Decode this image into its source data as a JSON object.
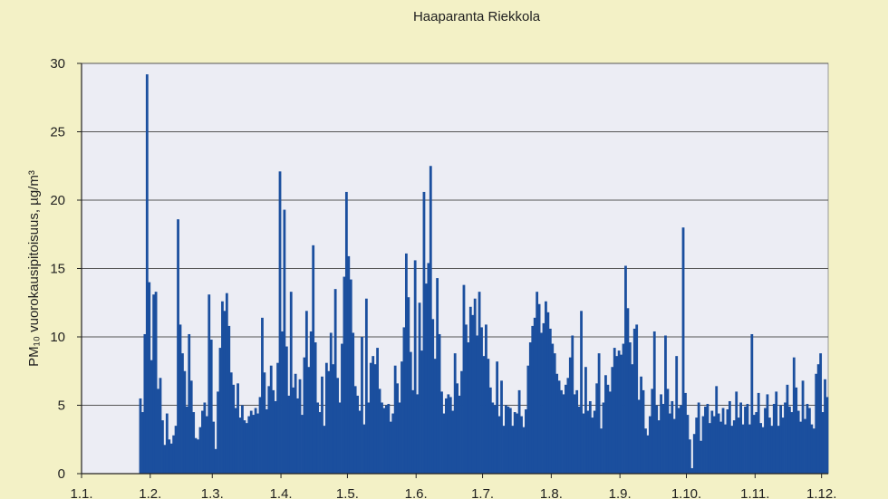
{
  "chart_data": {
    "type": "bar",
    "title": "Haaparanta Riekkola",
    "ylabel": "PM₁₀ vuorokausipitoisuus, µg/m³",
    "xlabel": "",
    "ylim": [
      0,
      30
    ],
    "yticks": [
      "0",
      "5",
      "10",
      "15",
      "20",
      "25",
      "30"
    ],
    "xticks": [
      "1.1.",
      "1.2.",
      "1.3.",
      "1.4.",
      "1.5.",
      "1.6.",
      "1.7.",
      "1.8.",
      "1.9.",
      "1.10.",
      "1.11.",
      "1.12."
    ],
    "grid": true,
    "bar_color": "#1b4f9e",
    "plot_background": "#ecedf4",
    "page_background": "#f3f1c6",
    "days_per_month": [
      31,
      28,
      31,
      30,
      31,
      30,
      31,
      31,
      30,
      31,
      30,
      31
    ],
    "values": [
      0,
      0,
      0,
      0,
      0,
      0,
      0,
      0,
      0,
      0,
      0,
      0,
      0,
      0,
      0,
      0,
      0,
      0,
      0,
      0,
      0,
      0,
      0,
      0,
      0,
      0,
      5.5,
      4.5,
      10.2,
      29.2,
      14.0,
      8.3,
      13.1,
      13.3,
      6.2,
      7.0,
      3.9,
      2.1,
      4.4,
      2.5,
      2.2,
      2.8,
      3.5,
      18.6,
      10.9,
      8.8,
      7.5,
      4.9,
      10.2,
      6.8,
      4.5,
      2.6,
      2.5,
      3.4,
      4.6,
      5.2,
      4.2,
      13.1,
      9.8,
      3.8,
      1.8,
      6.0,
      9.2,
      12.6,
      11.9,
      13.2,
      10.8,
      7.4,
      6.5,
      4.8,
      6.6,
      4.1,
      5.0,
      3.9,
      3.7,
      4.2,
      4.6,
      4.3,
      4.8,
      4.4,
      5.6,
      11.4,
      7.4,
      4.7,
      6.4,
      7.9,
      6.1,
      5.3,
      8.1,
      22.1,
      10.4,
      19.3,
      9.3,
      5.7,
      13.3,
      6.3,
      7.3,
      5.5,
      6.9,
      4.3,
      8.5,
      11.9,
      7.8,
      10.4,
      16.7,
      9.6,
      5.2,
      4.5,
      7.1,
      3.5,
      8.1,
      7.5,
      10.3,
      8.0,
      13.5,
      7.0,
      5.2,
      9.5,
      14.4,
      20.6,
      15.9,
      14.2,
      10.3,
      6.4,
      5.7,
      4.6,
      10.0,
      3.6,
      12.8,
      5.2,
      8.1,
      8.6,
      8.0,
      9.2,
      6.2,
      5.2,
      4.8,
      5.0,
      5.1,
      3.8,
      4.4,
      7.9,
      6.6,
      5.2,
      8.2,
      10.7,
      16.1,
      12.9,
      8.9,
      6.1,
      15.6,
      5.8,
      12.5,
      9.0,
      20.6,
      13.9,
      15.4,
      22.5,
      11.3,
      8.4,
      14.3,
      10.2,
      6.0,
      4.4,
      5.5,
      5.8,
      5.6,
      4.6,
      8.8,
      6.6,
      5.7,
      7.5,
      13.8,
      10.9,
      9.6,
      12.2,
      11.6,
      12.8,
      10.1,
      13.3,
      10.7,
      8.6,
      10.9,
      8.4,
      6.3,
      5.2,
      5.0,
      8.2,
      4.2,
      6.8,
      3.5,
      5.0,
      4.9,
      4.8,
      3.5,
      4.5,
      4.4,
      6.1,
      4.2,
      3.4,
      4.7,
      7.9,
      9.6,
      10.8,
      11.4,
      13.3,
      12.4,
      10.3,
      11.0,
      12.6,
      11.8,
      10.6,
      9.5,
      8.8,
      7.3,
      6.8,
      6.1,
      5.8,
      6.5,
      7.0,
      8.5,
      10.1,
      5.8,
      6.1,
      4.9,
      11.9,
      4.4,
      7.8,
      4.6,
      5.3,
      4.1,
      4.6,
      6.6,
      8.8,
      3.3,
      5.2,
      7.2,
      6.5,
      6.0,
      7.8,
      9.2,
      8.6,
      9.0,
      8.7,
      9.5,
      15.2,
      12.1,
      9.6,
      8.0,
      10.6,
      10.9,
      5.4,
      7.1,
      6.1,
      3.3,
      2.8,
      4.2,
      6.2,
      10.4,
      5.0,
      3.9,
      5.8,
      5.1,
      10.1,
      6.2,
      4.4,
      5.3,
      4.0,
      8.6,
      4.8,
      5.0,
      18.0,
      5.9,
      4.3,
      2.5,
      0.4,
      2.9,
      4.1,
      5.2,
      2.4,
      4.2,
      4.9,
      5.1,
      3.7,
      4.6,
      4.2,
      6.4,
      4.4,
      3.8,
      4.8,
      3.6,
      4.7,
      5.3,
      3.5,
      3.9,
      6.0,
      4.1,
      5.2,
      3.6,
      4.9,
      5.1,
      3.6,
      10.2,
      4.3,
      4.5,
      5.9,
      3.7,
      3.4,
      4.8,
      5.8,
      4.1,
      3.5,
      5.1,
      6.0,
      3.5,
      5.0,
      4.1,
      5.2,
      6.5,
      4.9,
      4.5,
      8.5,
      6.3,
      4.6,
      3.8,
      6.8,
      4.0,
      5.1,
      4.8,
      3.6,
      3.3,
      7.3,
      8.0,
      8.8,
      4.5,
      6.9,
      5.6
    ]
  }
}
